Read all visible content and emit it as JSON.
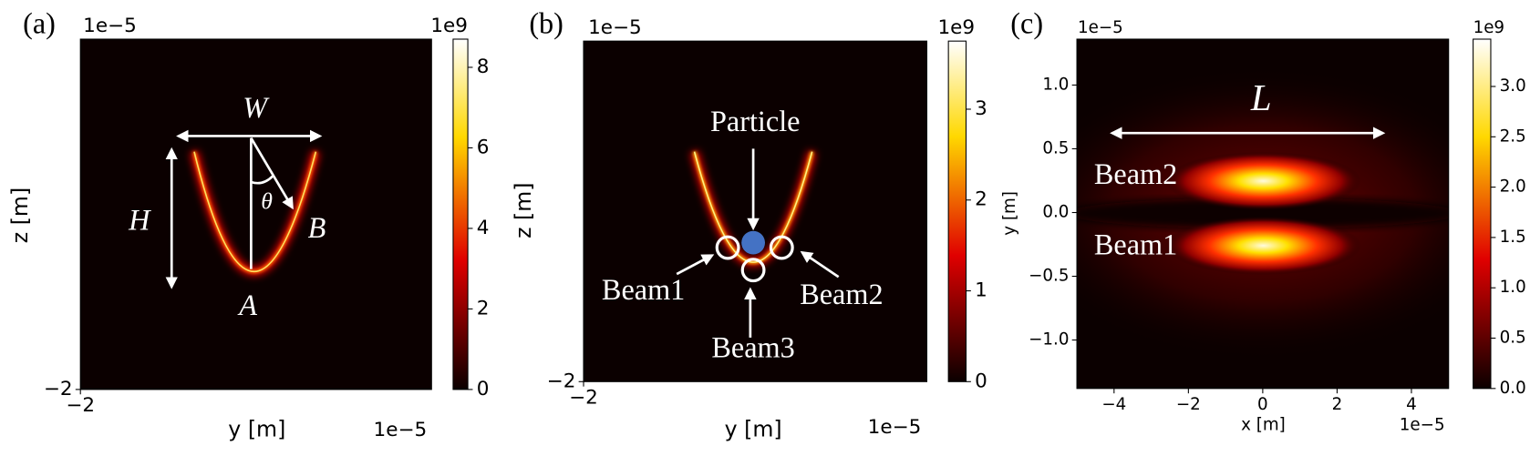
{
  "chart_data": [
    {
      "type": "heatmap",
      "panel_label": "(a)",
      "xlabel": "y [m]",
      "ylabel": "z [m]",
      "x_offset": "1e−5",
      "y_offset": "1e−5",
      "xlim": [
        -2,
        2
      ],
      "xticks": [
        {
          "value": -2,
          "label": "−2"
        }
      ],
      "ylim": [
        -2,
        2
      ],
      "yticks": [
        {
          "value": -2,
          "label": "−2"
        }
      ],
      "colormap": "hot",
      "clim": [
        0,
        8.7
      ],
      "cticks": [
        0,
        2,
        4,
        6,
        8
      ],
      "c_offset": "1e9",
      "annotations": [
        "W",
        "H",
        "θ",
        "B",
        "A"
      ]
    },
    {
      "type": "heatmap",
      "panel_label": "(b)",
      "xlabel": "y [m]",
      "ylabel": "z [m]",
      "x_offset": "1e−5",
      "y_offset": "1e−5",
      "xlim": [
        -2,
        2
      ],
      "xticks": [
        {
          "value": -2,
          "label": "−2"
        }
      ],
      "ylim": [
        -2,
        2
      ],
      "yticks": [
        {
          "value": -2,
          "label": "−2"
        }
      ],
      "colormap": "hot",
      "clim": [
        0,
        3.75
      ],
      "cticks": [
        0,
        1,
        2,
        3
      ],
      "c_offset": "1e9",
      "annotations": [
        "Particle",
        "Beam1",
        "Beam2",
        "Beam3"
      ]
    },
    {
      "type": "heatmap",
      "panel_label": "(c)",
      "xlabel": "x [m]",
      "ylabel": "y [m]",
      "x_offset": "1e−5",
      "y_offset": "1e−5",
      "xlim": [
        -5,
        5
      ],
      "xticks": [
        {
          "value": -4,
          "label": "−4"
        },
        {
          "value": -2,
          "label": "−2"
        },
        0,
        2,
        4
      ],
      "ylim": [
        -1.38,
        1.36
      ],
      "yticks": [
        {
          "value": -1,
          "label": "−1.0"
        },
        {
          "value": -0.5,
          "label": "−0.5"
        },
        {
          "value": 0,
          "label": "0.0"
        },
        {
          "value": 0.5,
          "label": "0.5"
        },
        {
          "value": 1,
          "label": "1.0"
        }
      ],
      "colormap": "hot",
      "clim": [
        0,
        3.47
      ],
      "cticks": [
        {
          "value": 0,
          "label": "0.0"
        },
        {
          "value": 0.5,
          "label": "0.5"
        },
        {
          "value": 1,
          "label": "1.0"
        },
        {
          "value": 1.5,
          "label": "1.5"
        },
        {
          "value": 2,
          "label": "2.0"
        },
        {
          "value": 2.5,
          "label": "2.5"
        },
        {
          "value": 3,
          "label": "3.0"
        }
      ],
      "c_offset": "1e9",
      "annotations": [
        "L",
        "Beam2",
        "Beam1"
      ]
    }
  ]
}
